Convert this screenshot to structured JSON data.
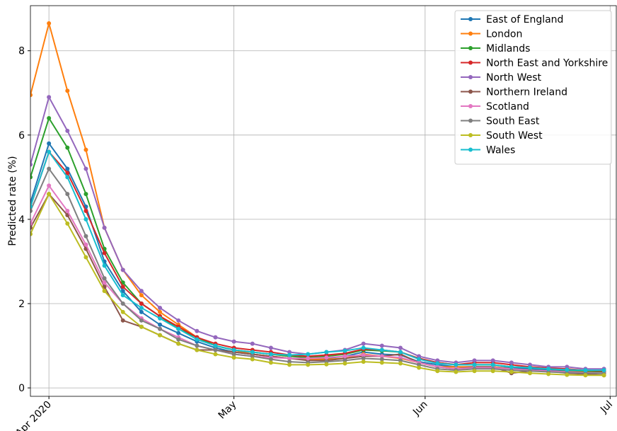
{
  "chart_data": {
    "type": "line",
    "y_label": "Predicted rate (%)",
    "x": [
      "2020-03-29",
      "2020-04-01",
      "2020-04-04",
      "2020-04-07",
      "2020-04-10",
      "2020-04-13",
      "2020-04-16",
      "2020-04-19",
      "2020-04-22",
      "2020-04-25",
      "2020-04-28",
      "2020-05-01",
      "2020-05-04",
      "2020-05-07",
      "2020-05-10",
      "2020-05-13",
      "2020-05-16",
      "2020-05-19",
      "2020-05-22",
      "2020-05-25",
      "2020-05-28",
      "2020-05-31",
      "2020-06-03",
      "2020-06-06",
      "2020-06-09",
      "2020-06-12",
      "2020-06-15",
      "2020-06-18",
      "2020-06-21",
      "2020-06-24",
      "2020-06-27",
      "2020-06-30"
    ],
    "xlim": [
      "2020-03-29",
      "2020-07-02"
    ],
    "xticks": [
      {
        "value": "2020-04-01",
        "label": "Apr 2020"
      },
      {
        "value": "2020-05-01",
        "label": "May"
      },
      {
        "value": "2020-06-01",
        "label": "Jun"
      },
      {
        "value": "2020-07-01",
        "label": "Jul"
      }
    ],
    "ylim": [
      -0.2,
      9.07
    ],
    "yticks": [
      0,
      2,
      4,
      6,
      8
    ],
    "grid": true,
    "legend_loc": "upper right",
    "series": [
      {
        "name": "East of England",
        "color": "#1f77b4",
        "values": [
          4.4,
          5.8,
          5.2,
          4.3,
          3.0,
          2.3,
          1.8,
          1.5,
          1.3,
          1.1,
          0.95,
          0.85,
          0.8,
          0.75,
          0.7,
          0.68,
          0.7,
          0.75,
          0.85,
          0.8,
          0.78,
          0.62,
          0.55,
          0.5,
          0.5,
          0.5,
          0.47,
          0.45,
          0.42,
          0.4,
          0.38,
          0.37
        ]
      },
      {
        "name": "London",
        "color": "#ff7f0e",
        "values": [
          6.95,
          8.65,
          7.05,
          5.65,
          3.8,
          2.8,
          2.2,
          1.8,
          1.5,
          1.2,
          1.0,
          0.9,
          0.8,
          0.75,
          0.7,
          0.68,
          0.68,
          0.7,
          0.8,
          0.75,
          0.7,
          0.6,
          0.5,
          0.5,
          0.5,
          0.5,
          0.45,
          0.42,
          0.4,
          0.38,
          0.37,
          0.35
        ]
      },
      {
        "name": "Midlands",
        "color": "#2ca02c",
        "values": [
          5.0,
          6.4,
          5.7,
          4.6,
          3.3,
          2.5,
          2.0,
          1.7,
          1.4,
          1.2,
          1.0,
          0.9,
          0.85,
          0.8,
          0.75,
          0.72,
          0.75,
          0.8,
          0.9,
          0.88,
          0.85,
          0.7,
          0.6,
          0.55,
          0.55,
          0.55,
          0.5,
          0.48,
          0.45,
          0.42,
          0.4,
          0.38
        ]
      },
      {
        "name": "North East and Yorkshire",
        "color": "#d62728",
        "values": [
          4.3,
          5.6,
          5.1,
          4.2,
          3.2,
          2.4,
          2.0,
          1.7,
          1.45,
          1.2,
          1.05,
          0.95,
          0.9,
          0.85,
          0.78,
          0.75,
          0.78,
          0.82,
          0.92,
          0.9,
          0.85,
          0.7,
          0.6,
          0.55,
          0.6,
          0.6,
          0.55,
          0.5,
          0.47,
          0.45,
          0.42,
          0.4
        ]
      },
      {
        "name": "North West",
        "color": "#9467bd",
        "values": [
          5.3,
          6.9,
          6.1,
          5.2,
          3.8,
          2.8,
          2.3,
          1.9,
          1.6,
          1.35,
          1.2,
          1.1,
          1.05,
          0.95,
          0.85,
          0.8,
          0.85,
          0.9,
          1.05,
          1.0,
          0.95,
          0.75,
          0.65,
          0.6,
          0.65,
          0.65,
          0.6,
          0.55,
          0.5,
          0.5,
          0.45,
          0.45
        ]
      },
      {
        "name": "Northern Ireland",
        "color": "#8c564b",
        "values": [
          3.8,
          4.6,
          4.1,
          3.3,
          2.4,
          1.6,
          1.45,
          1.25,
          1.05,
          0.9,
          0.9,
          0.85,
          0.8,
          0.75,
          0.7,
          0.65,
          0.65,
          0.7,
          0.75,
          0.75,
          0.8,
          0.6,
          0.5,
          0.45,
          0.5,
          0.5,
          0.35,
          0.4,
          0.4,
          0.35,
          0.33,
          0.3
        ]
      },
      {
        "name": "Scotland",
        "color": "#e377c2",
        "values": [
          3.9,
          4.8,
          4.2,
          3.4,
          2.5,
          2.0,
          1.65,
          1.4,
          1.2,
          1.0,
          0.9,
          0.8,
          0.75,
          0.72,
          0.7,
          0.7,
          0.72,
          0.75,
          0.78,
          0.75,
          0.72,
          0.6,
          0.5,
          0.45,
          0.48,
          0.48,
          0.45,
          0.42,
          0.4,
          0.38,
          0.36,
          0.35
        ]
      },
      {
        "name": "South East",
        "color": "#7f7f7f",
        "values": [
          4.2,
          5.2,
          4.6,
          3.6,
          2.6,
          2.0,
          1.6,
          1.4,
          1.15,
          1.0,
          0.9,
          0.8,
          0.75,
          0.68,
          0.62,
          0.6,
          0.62,
          0.65,
          0.7,
          0.68,
          0.65,
          0.55,
          0.45,
          0.42,
          0.45,
          0.45,
          0.42,
          0.4,
          0.38,
          0.36,
          0.35,
          0.34
        ]
      },
      {
        "name": "South West",
        "color": "#bcbd22",
        "values": [
          3.65,
          4.6,
          3.9,
          3.1,
          2.3,
          1.8,
          1.45,
          1.25,
          1.05,
          0.9,
          0.8,
          0.72,
          0.68,
          0.6,
          0.55,
          0.55,
          0.56,
          0.58,
          0.62,
          0.6,
          0.58,
          0.48,
          0.4,
          0.38,
          0.4,
          0.4,
          0.38,
          0.35,
          0.33,
          0.31,
          0.3,
          0.3
        ]
      },
      {
        "name": "Wales",
        "color": "#17becf",
        "values": [
          4.3,
          5.6,
          5.0,
          4.0,
          2.9,
          2.2,
          1.9,
          1.65,
          1.4,
          1.15,
          1.0,
          0.9,
          0.85,
          0.8,
          0.78,
          0.8,
          0.85,
          0.88,
          0.95,
          0.9,
          0.85,
          0.68,
          0.58,
          0.55,
          0.55,
          0.55,
          0.5,
          0.48,
          0.45,
          0.43,
          0.42,
          0.42
        ]
      }
    ]
  }
}
